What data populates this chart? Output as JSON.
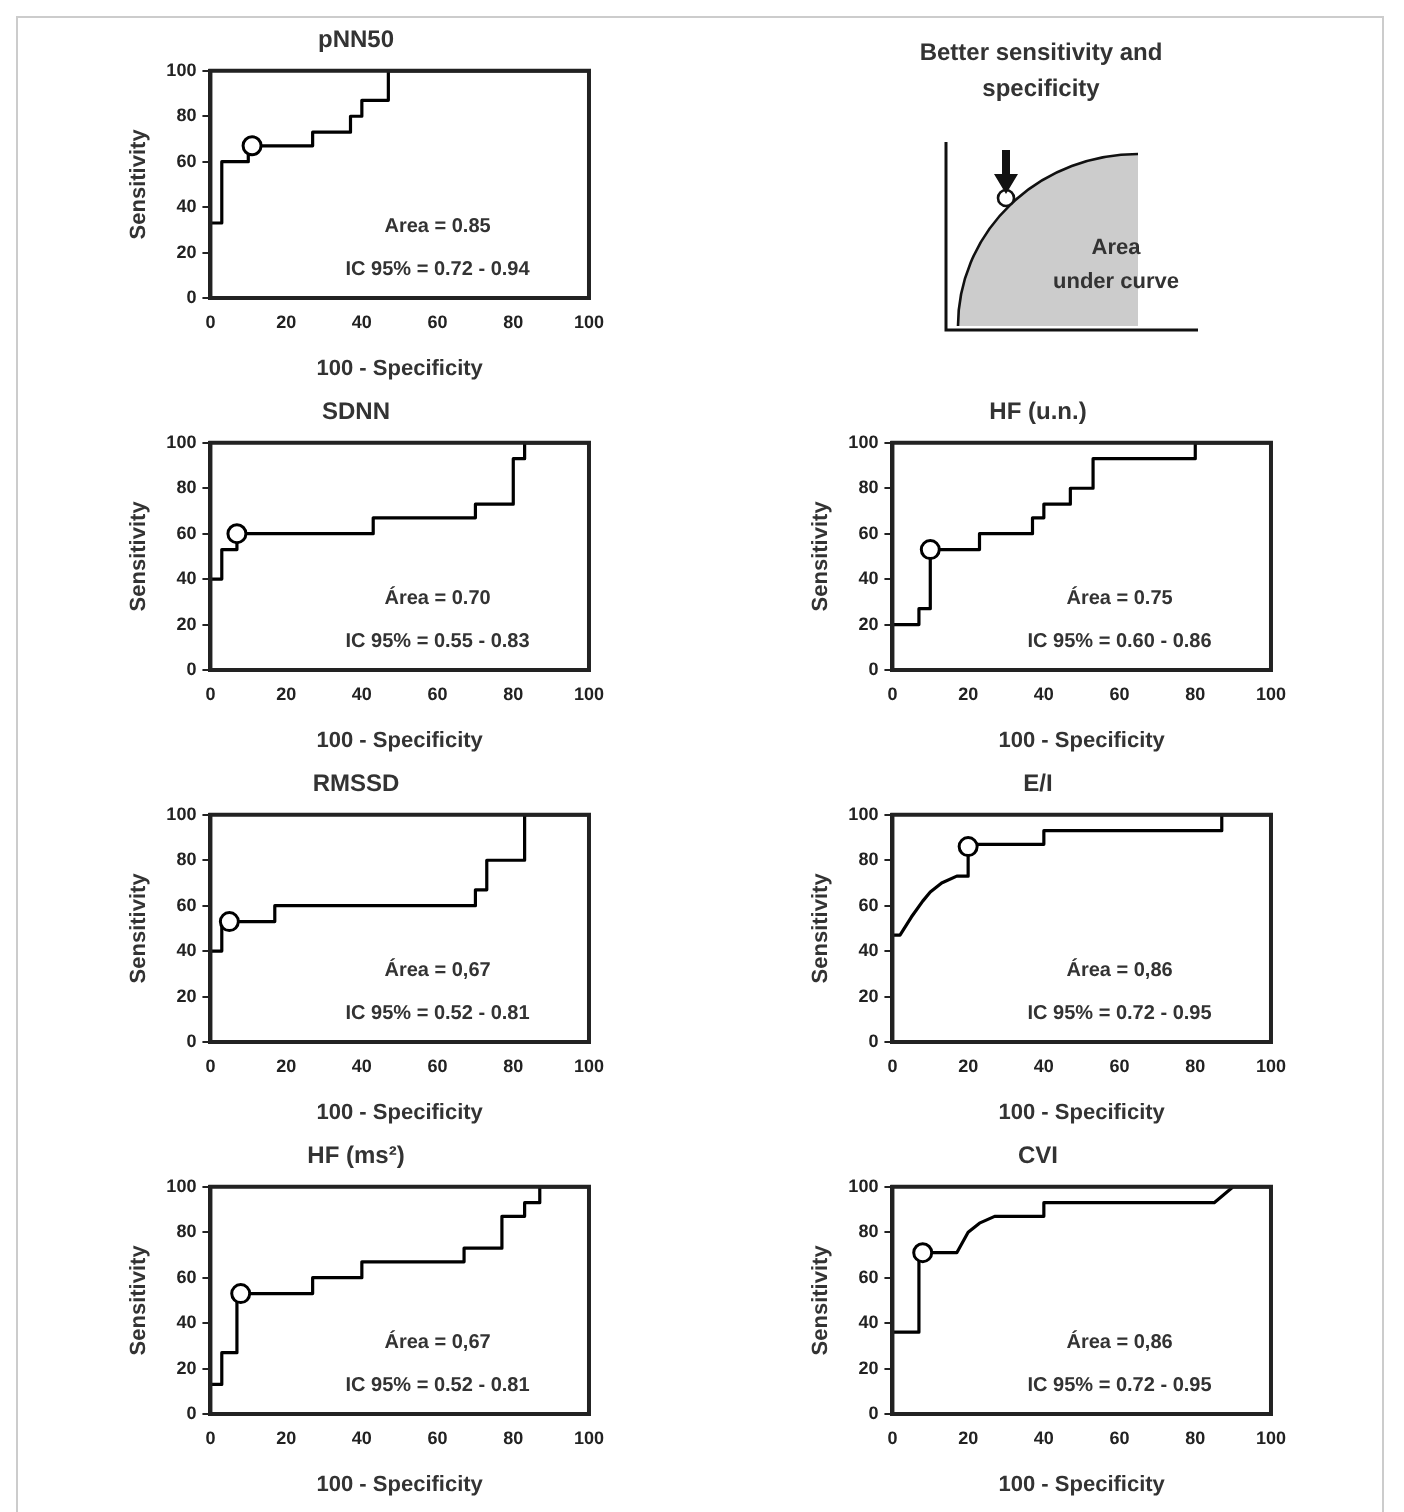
{
  "chart_data": [
    {
      "type": "step",
      "title": "pNN50",
      "xlabel": "100 - Specificity",
      "ylabel": "Sensitivity",
      "xlim": [
        0,
        100
      ],
      "ylim": [
        0,
        100
      ],
      "xticks": [
        0,
        20,
        40,
        60,
        80,
        100
      ],
      "yticks": [
        0,
        20,
        40,
        60,
        80,
        100
      ],
      "annotations": [
        "Area = 0.85",
        "IC 95% = 0.72 - 0.94"
      ],
      "series": [
        {
          "type": "step",
          "color": "#000000",
          "x": [
            0,
            0,
            3,
            10,
            27,
            37,
            40,
            47,
            100
          ],
          "values": [
            0,
            33,
            60,
            67,
            73,
            80,
            87,
            100,
            100
          ]
        },
        {
          "type": "scatter",
          "color": "#ffffff",
          "marker": "circle",
          "x": [
            11
          ],
          "values": [
            67
          ]
        }
      ]
    },
    {
      "type": "other",
      "title": "Better sensitivity and specificity",
      "annotations": [
        "Area",
        "under curve"
      ]
    },
    {
      "type": "step",
      "title": "SDNN",
      "xlabel": "100 - Specificity",
      "ylabel": "Sensitivity",
      "xlim": [
        0,
        100
      ],
      "ylim": [
        0,
        100
      ],
      "xticks": [
        0,
        20,
        40,
        60,
        80,
        100
      ],
      "yticks": [
        0,
        20,
        40,
        60,
        80,
        100
      ],
      "annotations": [
        "Área = 0.70",
        "IC 95% = 0.55 - 0.83"
      ],
      "series": [
        {
          "type": "step",
          "color": "#000000",
          "x": [
            0,
            0,
            3,
            7,
            43,
            70,
            80,
            83,
            100
          ],
          "values": [
            0,
            40,
            53,
            60,
            67,
            73,
            93,
            100,
            100
          ]
        },
        {
          "type": "scatter",
          "color": "#ffffff",
          "marker": "circle",
          "x": [
            7
          ],
          "values": [
            60
          ]
        }
      ]
    },
    {
      "type": "step",
      "title": "HF (u.n.)",
      "xlabel": "100 - Specificity",
      "ylabel": "Sensitivity",
      "xlim": [
        0,
        100
      ],
      "ylim": [
        0,
        100
      ],
      "xticks": [
        0,
        20,
        40,
        60,
        80,
        100
      ],
      "yticks": [
        0,
        20,
        40,
        60,
        80,
        100
      ],
      "annotations": [
        "Área = 0.75",
        "IC 95% = 0.60 - 0.86"
      ],
      "series": [
        {
          "type": "step",
          "color": "#000000",
          "x": [
            0,
            0,
            7,
            10,
            23,
            37,
            40,
            47,
            53,
            80,
            100
          ],
          "values": [
            0,
            20,
            27,
            53,
            60,
            67,
            73,
            80,
            93,
            100,
            100
          ]
        },
        {
          "type": "scatter",
          "color": "#ffffff",
          "marker": "circle",
          "x": [
            10
          ],
          "values": [
            53
          ]
        }
      ]
    },
    {
      "type": "step",
      "title": "RMSSD",
      "xlabel": "100 - Specificity",
      "ylabel": "Sensitivity",
      "xlim": [
        0,
        100
      ],
      "ylim": [
        0,
        100
      ],
      "xticks": [
        0,
        20,
        40,
        60,
        80,
        100
      ],
      "yticks": [
        0,
        20,
        40,
        60,
        80,
        100
      ],
      "annotations": [
        "Área = 0,67",
        "IC 95% = 0.52 - 0.81"
      ],
      "series": [
        {
          "type": "step",
          "color": "#000000",
          "x": [
            0,
            0,
            3,
            17,
            70,
            73,
            83,
            100
          ],
          "values": [
            0,
            40,
            53,
            60,
            67,
            80,
            100,
            100
          ]
        },
        {
          "type": "scatter",
          "color": "#ffffff",
          "marker": "circle",
          "x": [
            5
          ],
          "values": [
            53
          ]
        }
      ]
    },
    {
      "type": "line",
      "title": "E/I",
      "xlabel": "100 - Specificity",
      "ylabel": "Sensitivity",
      "xlim": [
        0,
        100
      ],
      "ylim": [
        0,
        100
      ],
      "xticks": [
        0,
        20,
        40,
        60,
        80,
        100
      ],
      "yticks": [
        0,
        20,
        40,
        60,
        80,
        100
      ],
      "annotations": [
        "Área = 0,86",
        "IC 95% = 0.72 - 0.95"
      ],
      "series": [
        {
          "type": "line",
          "color": "#000000",
          "x": [
            0,
            0,
            2,
            5,
            8,
            10,
            13,
            17,
            20,
            20,
            40,
            40,
            87,
            87,
            100
          ],
          "values": [
            0,
            47,
            47,
            55,
            62,
            66,
            70,
            73,
            73,
            87,
            87,
            93,
            93,
            100,
            100
          ]
        },
        {
          "type": "scatter",
          "color": "#ffffff",
          "marker": "circle",
          "x": [
            20
          ],
          "values": [
            86
          ]
        }
      ]
    },
    {
      "type": "step",
      "title": "HF (ms²)",
      "xlabel": "100 - Specificity",
      "ylabel": "Sensitivity",
      "xlim": [
        0,
        100
      ],
      "ylim": [
        0,
        100
      ],
      "xticks": [
        0,
        20,
        40,
        60,
        80,
        100
      ],
      "yticks": [
        0,
        20,
        40,
        60,
        80,
        100
      ],
      "annotations": [
        "Área = 0,67",
        "IC 95% = 0.52 - 0.81"
      ],
      "series": [
        {
          "type": "step",
          "color": "#000000",
          "x": [
            0,
            0,
            3,
            7,
            27,
            40,
            67,
            77,
            83,
            87,
            100
          ],
          "values": [
            0,
            13,
            27,
            53,
            60,
            67,
            73,
            87,
            93,
            100,
            100
          ]
        },
        {
          "type": "scatter",
          "color": "#ffffff",
          "marker": "circle",
          "x": [
            8
          ],
          "values": [
            53
          ]
        }
      ]
    },
    {
      "type": "line",
      "title": "CVI",
      "xlabel": "100 - Specificity",
      "ylabel": "Sensitivity",
      "xlim": [
        0,
        100
      ],
      "ylim": [
        0,
        100
      ],
      "xticks": [
        0,
        20,
        40,
        60,
        80,
        100
      ],
      "yticks": [
        0,
        20,
        40,
        60,
        80,
        100
      ],
      "annotations": [
        "Área = 0,86",
        "IC 95% = 0.72 - 0.95"
      ],
      "series": [
        {
          "type": "line",
          "color": "#000000",
          "x": [
            0,
            0,
            7,
            7,
            17,
            20,
            23,
            27,
            40,
            40,
            85,
            90,
            100
          ],
          "values": [
            0,
            36,
            36,
            71,
            71,
            80,
            84,
            87,
            87,
            93,
            93,
            100,
            100
          ]
        },
        {
          "type": "scatter",
          "color": "#ffffff",
          "marker": "circle",
          "x": [
            8
          ],
          "values": [
            71
          ]
        }
      ]
    }
  ]
}
